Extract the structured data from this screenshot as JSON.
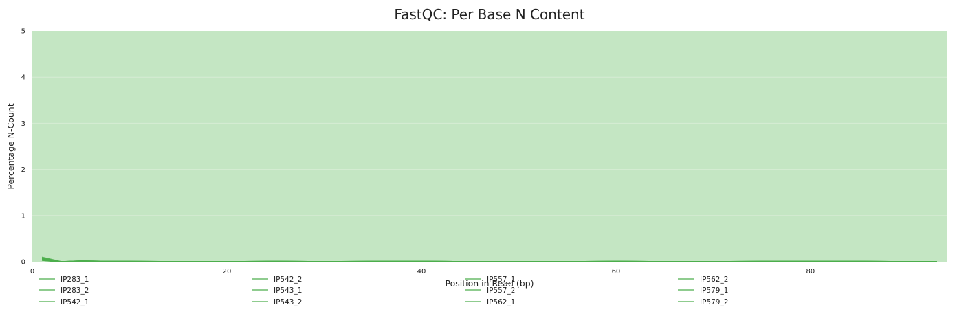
{
  "chart_data": {
    "type": "line",
    "title": "FastQC: Per Base N Content",
    "xlabel": "Position in Read (bp)",
    "ylabel": "Percentage N-Count",
    "xlim": [
      0,
      94
    ],
    "ylim": [
      0,
      5
    ],
    "x_ticks": [
      0,
      20,
      40,
      60,
      80
    ],
    "y_ticks": [
      0,
      1,
      2,
      3,
      4,
      5
    ],
    "grid": true,
    "background_bands": [
      {
        "from": 0,
        "to": 5,
        "color": "#c4e6c3"
      }
    ],
    "line_color": "#4cae4c",
    "legend_position": "bottom",
    "series": [
      {
        "name": "IP283_1",
        "x": [
          1,
          2,
          3,
          5,
          7,
          10,
          15,
          20,
          25,
          30,
          35,
          40,
          45,
          50,
          55,
          60,
          65,
          70,
          75,
          80,
          85,
          90,
          93
        ],
        "y": [
          0.1,
          0.05,
          0,
          0.02,
          0.01,
          0.01,
          0,
          0,
          0.01,
          0,
          0.01,
          0.01,
          0,
          0,
          0,
          0.01,
          0,
          0,
          0.01,
          0.01,
          0.01,
          0,
          0
        ]
      },
      {
        "name": "IP283_2",
        "x": [
          1,
          2,
          3,
          5,
          7,
          10,
          15,
          20,
          25,
          30,
          35,
          40,
          45,
          50,
          55,
          60,
          65,
          70,
          75,
          80,
          85,
          90,
          93
        ],
        "y": [
          0.09,
          0.04,
          0,
          0.02,
          0.01,
          0.01,
          0,
          0,
          0.01,
          0,
          0.01,
          0.01,
          0,
          0,
          0,
          0.01,
          0,
          0,
          0.01,
          0.01,
          0.01,
          0,
          0
        ]
      },
      {
        "name": "IP542_1",
        "x": [
          1,
          2,
          3,
          5,
          7,
          10,
          15,
          20,
          25,
          30,
          35,
          40,
          45,
          50,
          55,
          60,
          65,
          70,
          75,
          80,
          85,
          90,
          93
        ],
        "y": [
          0.08,
          0.03,
          0,
          0.02,
          0.01,
          0,
          0,
          0,
          0.01,
          0,
          0,
          0.01,
          0,
          0,
          0,
          0.01,
          0,
          0,
          0,
          0.01,
          0.01,
          0,
          0
        ]
      },
      {
        "name": "IP542_2",
        "x": [
          1,
          2,
          3,
          5,
          7,
          10,
          15,
          20,
          25,
          30,
          35,
          40,
          45,
          50,
          55,
          60,
          65,
          70,
          75,
          80,
          85,
          90,
          93
        ],
        "y": [
          0.07,
          0.03,
          0,
          0.01,
          0.01,
          0,
          0,
          0,
          0,
          0,
          0,
          0.01,
          0,
          0,
          0,
          0,
          0,
          0,
          0,
          0.01,
          0,
          0,
          0
        ]
      },
      {
        "name": "IP543_1",
        "x": [
          1,
          2,
          3,
          5,
          7,
          10,
          15,
          20,
          25,
          30,
          35,
          40,
          45,
          50,
          55,
          60,
          65,
          70,
          75,
          80,
          85,
          90,
          93
        ],
        "y": [
          0.06,
          0.02,
          0,
          0.01,
          0,
          0,
          0,
          0,
          0,
          0,
          0,
          0,
          0,
          0,
          0,
          0,
          0,
          0,
          0,
          0,
          0,
          0,
          0
        ]
      },
      {
        "name": "IP543_2",
        "x": [
          1,
          2,
          3,
          5,
          7,
          10,
          15,
          20,
          25,
          30,
          35,
          40,
          45,
          50,
          55,
          60,
          65,
          70,
          75,
          80,
          85,
          90,
          93
        ],
        "y": [
          0.06,
          0.02,
          0,
          0.01,
          0,
          0,
          0,
          0,
          0,
          0,
          0,
          0,
          0,
          0,
          0,
          0,
          0,
          0,
          0,
          0,
          0,
          0,
          0
        ]
      },
      {
        "name": "IP557_1",
        "x": [
          1,
          2,
          3,
          5,
          7,
          10,
          15,
          20,
          25,
          30,
          35,
          40,
          45,
          50,
          55,
          60,
          65,
          70,
          75,
          80,
          85,
          90,
          93
        ],
        "y": [
          0.05,
          0.02,
          0,
          0.01,
          0,
          0,
          0,
          0,
          0,
          0,
          0,
          0,
          0,
          0,
          0,
          0,
          0,
          0,
          0,
          0,
          0,
          0,
          0
        ]
      },
      {
        "name": "IP557_2",
        "x": [
          1,
          2,
          3,
          5,
          7,
          10,
          15,
          20,
          25,
          30,
          35,
          40,
          45,
          50,
          55,
          60,
          65,
          70,
          75,
          80,
          85,
          90,
          93
        ],
        "y": [
          0.05,
          0.02,
          0,
          0.01,
          0,
          0,
          0,
          0,
          0,
          0,
          0,
          0,
          0,
          0,
          0,
          0,
          0,
          0,
          0,
          0,
          0,
          0,
          0
        ]
      },
      {
        "name": "IP562_1",
        "x": [
          1,
          2,
          3,
          5,
          7,
          10,
          15,
          20,
          25,
          30,
          35,
          40,
          45,
          50,
          55,
          60,
          65,
          70,
          75,
          80,
          85,
          90,
          93
        ],
        "y": [
          0.04,
          0.01,
          0,
          0.01,
          0,
          0,
          0,
          0,
          0,
          0,
          0,
          0,
          0,
          0,
          0,
          0,
          0,
          0,
          0,
          0,
          0,
          0,
          0
        ]
      },
      {
        "name": "IP562_2",
        "x": [
          1,
          2,
          3,
          5,
          7,
          10,
          15,
          20,
          25,
          30,
          35,
          40,
          45,
          50,
          55,
          60,
          65,
          70,
          75,
          80,
          85,
          90,
          93
        ],
        "y": [
          0.04,
          0.01,
          0,
          0.01,
          0,
          0,
          0,
          0,
          0,
          0,
          0,
          0,
          0,
          0,
          0,
          0,
          0,
          0,
          0,
          0,
          0,
          0,
          0
        ]
      },
      {
        "name": "IP579_1",
        "x": [
          1,
          2,
          3,
          5,
          7,
          10,
          15,
          20,
          25,
          30,
          35,
          40,
          45,
          50,
          55,
          60,
          65,
          70,
          75,
          80,
          85,
          90,
          93
        ],
        "y": [
          0.03,
          0.01,
          0,
          0,
          0,
          0,
          0,
          0,
          0,
          0,
          0,
          0,
          0,
          0,
          0,
          0,
          0,
          0,
          0,
          0,
          0,
          0,
          0
        ]
      },
      {
        "name": "IP579_2",
        "x": [
          1,
          2,
          3,
          5,
          7,
          10,
          15,
          20,
          25,
          30,
          35,
          40,
          45,
          50,
          55,
          60,
          65,
          70,
          75,
          80,
          85,
          90,
          93
        ],
        "y": [
          0.03,
          0.01,
          0,
          0,
          0,
          0,
          0,
          0,
          0,
          0,
          0,
          0,
          0,
          0,
          0,
          0,
          0,
          0,
          0,
          0,
          0,
          0,
          0
        ]
      }
    ]
  }
}
